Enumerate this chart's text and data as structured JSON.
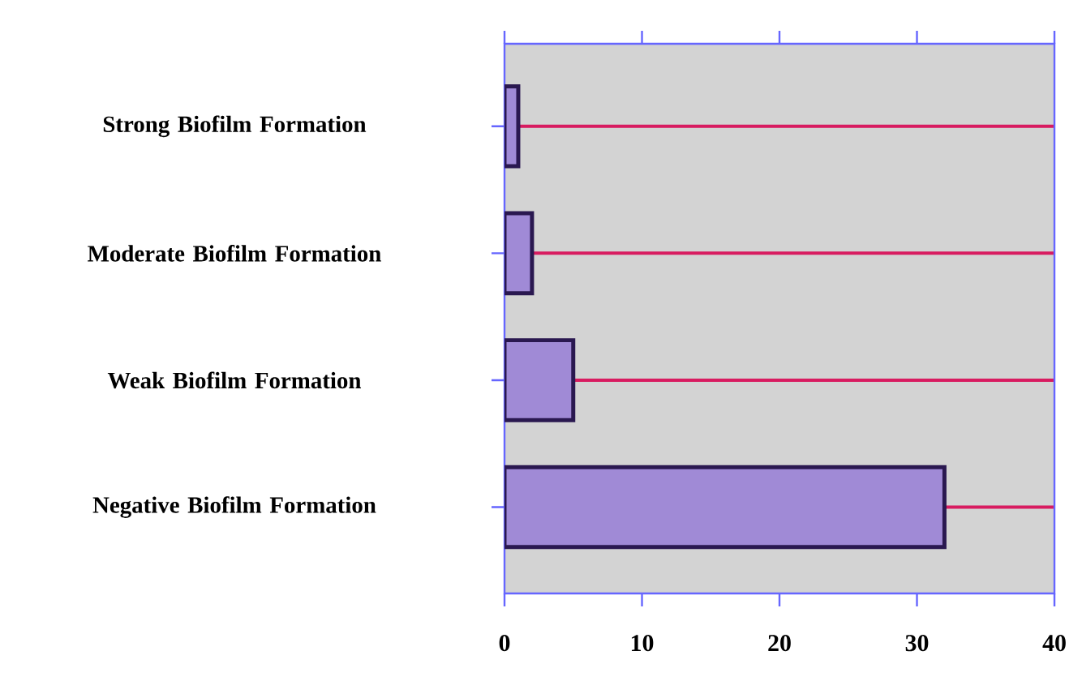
{
  "chart_data": {
    "type": "bar",
    "orientation": "horizontal",
    "categories": [
      "Strong Biofilm Formation",
      "Moderate Biofilm Formation",
      "Weak Biofilm Formation",
      "Negative Biofilm Formation"
    ],
    "values": [
      1,
      2,
      5,
      32
    ],
    "color": "#a08ad6",
    "xlim": [
      0,
      40
    ],
    "xticks": [
      0,
      10,
      20,
      30,
      40
    ],
    "grid": "y"
  }
}
